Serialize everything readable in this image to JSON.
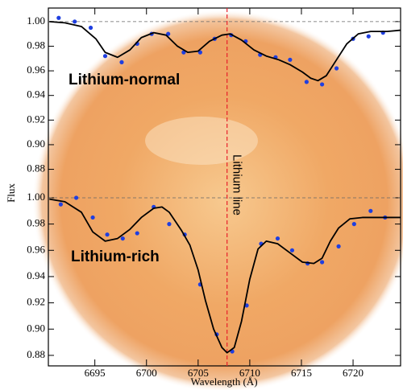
{
  "chart_data": [
    {
      "type": "line",
      "ylabel": "Flux",
      "annotation": "Lithium-normal",
      "annotation_color": "#1a2fd0",
      "xlim": [
        6690.5,
        6724.6
      ],
      "ylim": [
        0.866,
        1.011
      ],
      "yticks": [
        {
          "value": 0.88,
          "label": "0.88"
        },
        {
          "value": 0.9,
          "label": "0.90"
        },
        {
          "value": 0.92,
          "label": "0.92"
        },
        {
          "value": 0.94,
          "label": "0.94"
        },
        {
          "value": 0.96,
          "label": "0.96"
        },
        {
          "value": 0.98,
          "label": "0.98"
        },
        {
          "value": 1,
          "label": "1.00"
        }
      ],
      "hline": 1,
      "vline": {
        "x": 6707.8,
        "label": "Lithium line",
        "color": "#e8202a"
      },
      "series": [
        {
          "mode": "markers",
          "color": "#1f3fe0",
          "x": [
            6691.5,
            6693.05,
            6694.6,
            6696.0,
            6697.6,
            6699.1,
            6700.5,
            6702.1,
            6703.6,
            6705.2,
            6706.6,
            6708.2,
            6709.6,
            6711.0,
            6712.5,
            6713.9,
            6715.5,
            6717.0,
            6718.4,
            6720.0,
            6721.5,
            6722.9
          ],
          "values": [
            1.003,
            1.0,
            0.995,
            0.972,
            0.967,
            0.982,
            0.99,
            0.99,
            0.975,
            0.975,
            0.986,
            0.989,
            0.984,
            0.973,
            0.971,
            0.969,
            0.951,
            0.949,
            0.962,
            0.986,
            0.988,
            0.991
          ]
        },
        {
          "mode": "line",
          "color": "#000000",
          "x": [
            6690.6,
            6692.1,
            6693.7,
            6695.1,
            6696.0,
            6697.2,
            6698.4,
            6699.5,
            6700.7,
            6701.9,
            6703.0,
            6704.0,
            6705.0,
            6706.1,
            6707.3,
            6708.1,
            6709.2,
            6710.4,
            6711.6,
            6712.8,
            6713.9,
            6715.1,
            6715.9,
            6716.6,
            6717.4,
            6718.4,
            6719.4,
            6720.5,
            6721.7,
            6723.3,
            6724.6
          ],
          "values": [
            1.0,
            0.999,
            0.996,
            0.986,
            0.975,
            0.971,
            0.977,
            0.987,
            0.991,
            0.989,
            0.98,
            0.975,
            0.976,
            0.984,
            0.989,
            0.99,
            0.985,
            0.977,
            0.972,
            0.969,
            0.965,
            0.959,
            0.954,
            0.952,
            0.956,
            0.969,
            0.982,
            0.99,
            0.992,
            0.992,
            0.993
          ]
        }
      ]
    },
    {
      "type": "line",
      "xlabel": "Wavelength (Å)",
      "annotation": "Lithium-rich",
      "annotation_color": "#1a2fd0",
      "xlim": [
        6690.5,
        6724.6
      ],
      "ylim": [
        0.872,
        1.011
      ],
      "xticks": [
        6695,
        6700,
        6705,
        6710,
        6715,
        6720
      ],
      "yticks": [
        {
          "value": 0.88,
          "label": "0.88"
        },
        {
          "value": 0.9,
          "label": "0.90"
        },
        {
          "value": 0.92,
          "label": "0.92"
        },
        {
          "value": 0.94,
          "label": "0.94"
        },
        {
          "value": 0.96,
          "label": "0.96"
        },
        {
          "value": 0.98,
          "label": "0.98"
        },
        {
          "value": 1,
          "label": "1.00"
        }
      ],
      "hline": 1,
      "series": [
        {
          "mode": "markers",
          "color": "#1f3fe0",
          "x": [
            6691.7,
            6693.2,
            6694.8,
            6696.2,
            6697.7,
            6699.1,
            6700.7,
            6702.2,
            6703.7,
            6705.2,
            6706.8,
            6708.3,
            6709.7,
            6711.1,
            6712.7,
            6714.1,
            6715.6,
            6717.0,
            6718.6,
            6720.1,
            6721.7,
            6723.1
          ],
          "values": [
            0.995,
            1.0,
            0.985,
            0.972,
            0.969,
            0.973,
            0.993,
            0.98,
            0.972,
            0.934,
            0.896,
            0.883,
            0.918,
            0.965,
            0.969,
            0.96,
            0.95,
            0.951,
            0.963,
            0.98,
            0.99,
            0.985
          ]
        },
        {
          "mode": "line",
          "color": "#000000",
          "x": [
            6690.6,
            6692.1,
            6693.7,
            6694.8,
            6696.0,
            6697.2,
            6698.4,
            6699.5,
            6700.7,
            6701.5,
            6702.2,
            6703.4,
            6704.2,
            6705.0,
            6705.7,
            6706.5,
            6707.3,
            6707.8,
            6708.5,
            6709.2,
            6710.0,
            6710.8,
            6711.6,
            6712.7,
            6713.9,
            6715.1,
            6716.2,
            6717.0,
            6717.8,
            6718.6,
            6719.7,
            6720.9,
            6722.5,
            6724.6
          ],
          "values": [
            0.999,
            0.997,
            0.989,
            0.974,
            0.967,
            0.969,
            0.976,
            0.985,
            0.992,
            0.993,
            0.989,
            0.975,
            0.964,
            0.945,
            0.922,
            0.9,
            0.886,
            0.882,
            0.886,
            0.906,
            0.938,
            0.961,
            0.967,
            0.965,
            0.958,
            0.951,
            0.95,
            0.954,
            0.967,
            0.977,
            0.984,
            0.985,
            0.985,
            0.985
          ]
        }
      ]
    }
  ]
}
